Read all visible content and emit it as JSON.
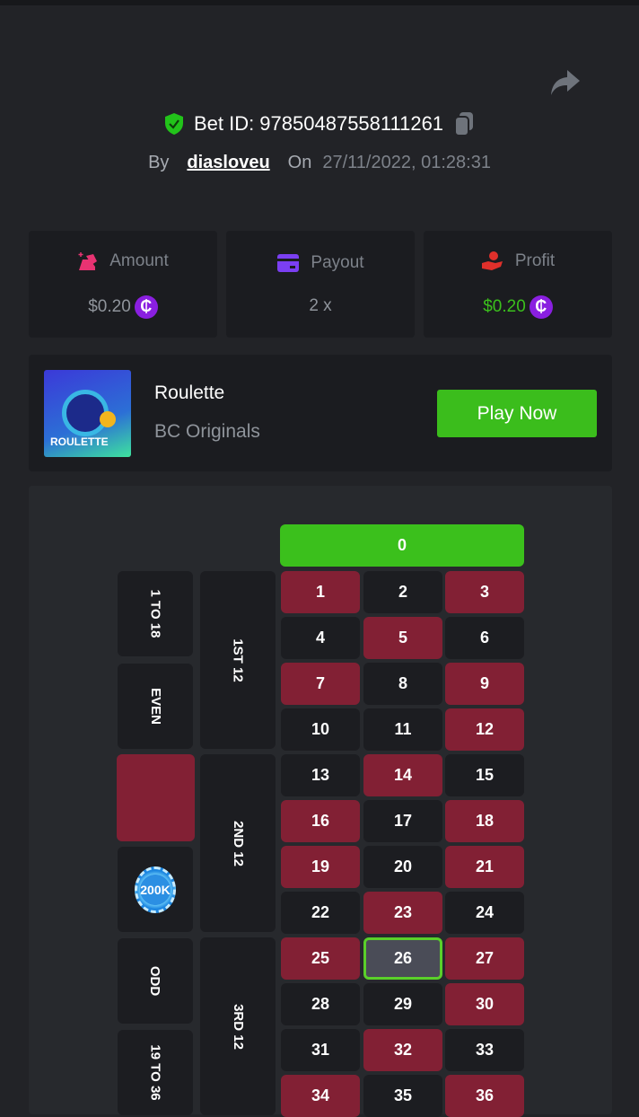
{
  "header": {
    "bet_id_label": "Bet ID: 97850487558111261",
    "by_label": "By",
    "username": "diasloveu",
    "on_label": "On",
    "datetime": "27/11/2022, 01:28:31"
  },
  "stats": [
    {
      "label": "Amount",
      "value": "$0.20",
      "icon": "amount-icon",
      "color": "#e83372",
      "value_color": "#8f949b"
    },
    {
      "label": "Payout",
      "value": "2 x",
      "icon": "card-icon",
      "color": "#7b3ff2",
      "value_color": "#8f949b"
    },
    {
      "label": "Profit",
      "value": "$0.20",
      "icon": "profit-hand-icon",
      "color": "#e0302b",
      "value_color": "#3bc01c"
    }
  ],
  "coin_symbol": "₵",
  "game": {
    "thumb_label": "ROULETTE",
    "name": "Roulette",
    "provider": "BC Originals",
    "play_label": "Play Now"
  },
  "board": {
    "zero": "0",
    "red_numbers": [
      1,
      3,
      5,
      7,
      9,
      12,
      14,
      16,
      18,
      19,
      21,
      23,
      25,
      27,
      30,
      32,
      34,
      36
    ],
    "winning_number": 26,
    "outside": [
      "1 TO 18",
      "EVEN",
      "",
      "",
      "ODD",
      "19 TO 36"
    ],
    "dozens": [
      "1ST 12",
      "2ND 12",
      "3RD 12"
    ],
    "chip_label": "200K"
  },
  "colors": {
    "red": "#822034",
    "green": "#3bc01c",
    "accent_coin": "#8a1fe0"
  }
}
